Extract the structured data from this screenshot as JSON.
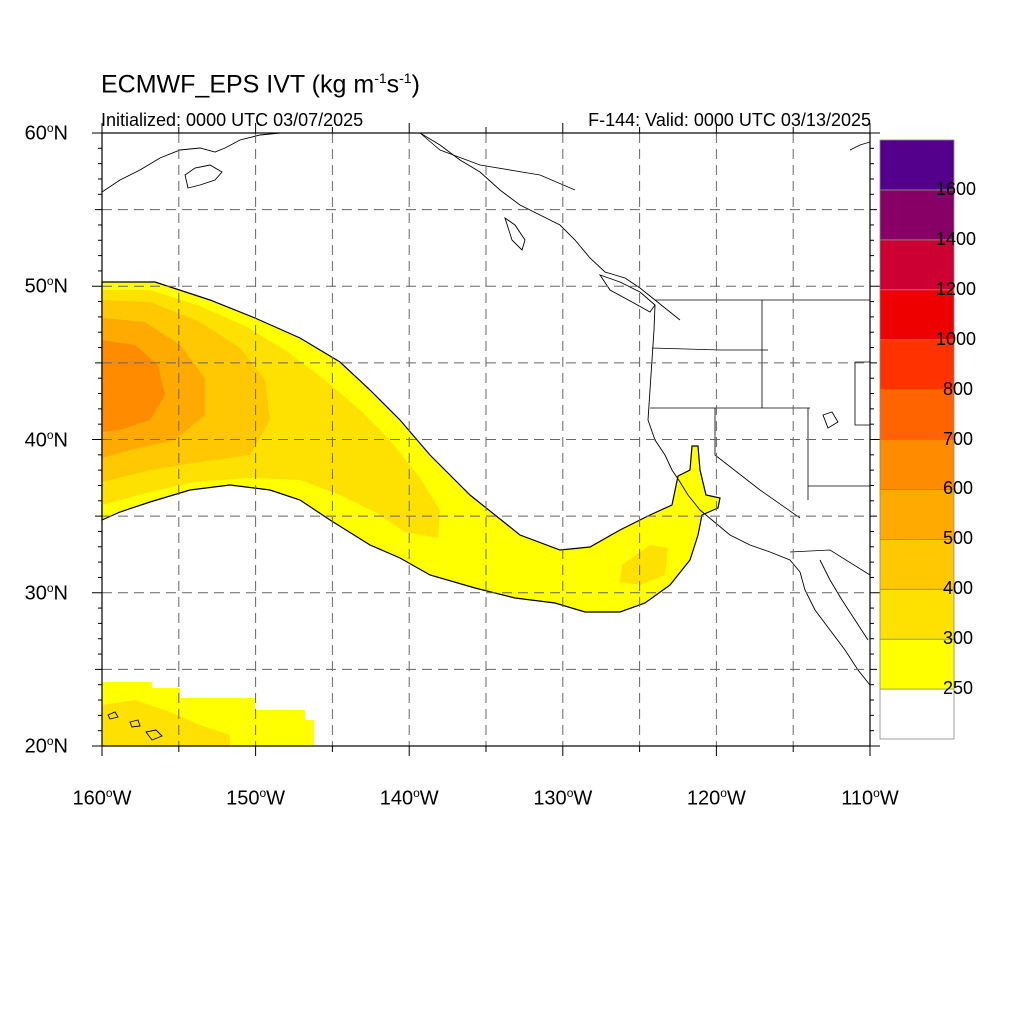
{
  "header": {
    "title_main": "ECMWF_EPS IVT (kg m",
    "title_exp1": "-1",
    "title_mid": "s",
    "title_exp2": "-1",
    "title_end": ")",
    "initialized": "Initialized: 0000 UTC 03/07/2025",
    "valid": "F-144: Valid: 0000 UTC 03/13/2025"
  },
  "axes": {
    "lat_labels": [
      {
        "value": "60",
        "unit": "o",
        "hem": "N"
      },
      {
        "value": "50",
        "unit": "o",
        "hem": "N"
      },
      {
        "value": "40",
        "unit": "o",
        "hem": "N"
      },
      {
        "value": "30",
        "unit": "o",
        "hem": "N"
      },
      {
        "value": "20",
        "unit": "o",
        "hem": "N"
      }
    ],
    "lon_labels": [
      {
        "value": "160",
        "unit": "o",
        "hem": "W"
      },
      {
        "value": "150",
        "unit": "o",
        "hem": "W"
      },
      {
        "value": "140",
        "unit": "o",
        "hem": "W"
      },
      {
        "value": "130",
        "unit": "o",
        "hem": "W"
      },
      {
        "value": "120",
        "unit": "o",
        "hem": "W"
      },
      {
        "value": "110",
        "unit": "o",
        "hem": "W"
      }
    ],
    "lat_range": [
      20,
      60
    ],
    "lon_range": [
      -160,
      -110
    ],
    "grid": "dashed every 5 degrees"
  },
  "colorbar": {
    "levels": [
      "250",
      "300",
      "400",
      "500",
      "600",
      "700",
      "800",
      "1000",
      "1200",
      "1400",
      "1600"
    ],
    "colors": [
      "#ffffff",
      "#ffff00",
      "#ffe100",
      "#ffc800",
      "#ffaa00",
      "#ff8c00",
      "#ff6400",
      "#ff3200",
      "#ee0000",
      "#cc0033",
      "#880066",
      "#55008c"
    ]
  },
  "map": {
    "region": "Northeast Pacific and western North America",
    "features": [
      "coastlines",
      "US state borders",
      "Canada-US border",
      "Hawaiian Islands"
    ]
  }
}
